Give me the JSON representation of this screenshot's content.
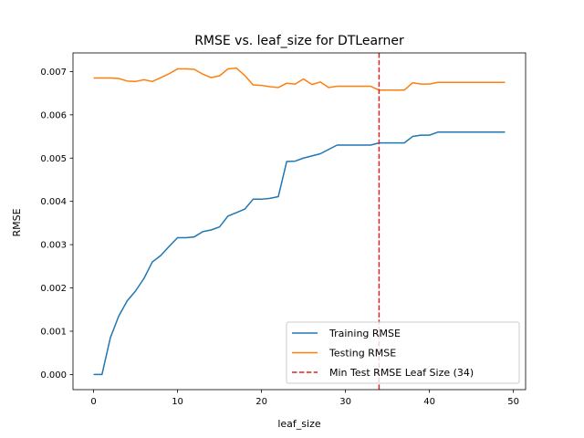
{
  "chart_data": {
    "type": "line",
    "title": "RMSE vs. leaf_size for DTLearner",
    "xlabel": "leaf_size",
    "ylabel": "RMSE",
    "xlim": [
      -2.45,
      51.45
    ],
    "ylim": [
      -0.00035,
      0.00743
    ],
    "xticks": [
      0,
      10,
      20,
      30,
      40,
      50
    ],
    "yticks": [
      0.0,
      0.001,
      0.002,
      0.003,
      0.004,
      0.005,
      0.006,
      0.007
    ],
    "ytick_labels": [
      "0.000",
      "0.001",
      "0.002",
      "0.003",
      "0.004",
      "0.005",
      "0.006",
      "0.007"
    ],
    "grid": false,
    "legend_position": "lower-right",
    "x": [
      0,
      1,
      2,
      3,
      4,
      5,
      6,
      7,
      8,
      9,
      10,
      11,
      12,
      13,
      14,
      15,
      16,
      17,
      18,
      19,
      20,
      21,
      22,
      23,
      24,
      25,
      26,
      27,
      28,
      29,
      30,
      31,
      32,
      33,
      34,
      35,
      36,
      37,
      38,
      39,
      40,
      41,
      42,
      43,
      44,
      45,
      46,
      47,
      48,
      49
    ],
    "series": [
      {
        "name": "Training RMSE",
        "color": "#1f77b4",
        "values": [
          0.0,
          0.0,
          0.00085,
          0.00135,
          0.0017,
          0.00193,
          0.00222,
          0.0026,
          0.00275,
          0.00296,
          0.00316,
          0.00316,
          0.00318,
          0.0033,
          0.00334,
          0.00341,
          0.00366,
          0.00374,
          0.00382,
          0.00405,
          0.00405,
          0.00407,
          0.00411,
          0.00492,
          0.00493,
          0.005,
          0.00505,
          0.0051,
          0.0052,
          0.0053,
          0.0053,
          0.0053,
          0.0053,
          0.0053,
          0.00535,
          0.00535,
          0.00535,
          0.00535,
          0.0055,
          0.00553,
          0.00553,
          0.0056,
          0.0056,
          0.0056,
          0.0056,
          0.0056,
          0.0056,
          0.0056,
          0.0056,
          0.0056
        ]
      },
      {
        "name": "Testing RMSE",
        "color": "#ff7f0e",
        "values": [
          0.00685,
          0.00685,
          0.00685,
          0.00684,
          0.00678,
          0.00677,
          0.00681,
          0.00677,
          0.00686,
          0.00695,
          0.00706,
          0.00706,
          0.00705,
          0.00694,
          0.00686,
          0.0069,
          0.00706,
          0.00708,
          0.00691,
          0.00669,
          0.00668,
          0.00665,
          0.00663,
          0.00673,
          0.00671,
          0.00683,
          0.0067,
          0.00676,
          0.00663,
          0.00666,
          0.00666,
          0.00666,
          0.00666,
          0.00666,
          0.00657,
          0.00657,
          0.00657,
          0.00657,
          0.00674,
          0.00671,
          0.00671,
          0.00675,
          0.00675,
          0.00675,
          0.00675,
          0.00675,
          0.00675,
          0.00675,
          0.00675,
          0.00675
        ]
      }
    ],
    "vline": {
      "name": "Min Test RMSE Leaf Size (34)",
      "x": 34,
      "color": "#d62728",
      "style": "dashed"
    }
  }
}
